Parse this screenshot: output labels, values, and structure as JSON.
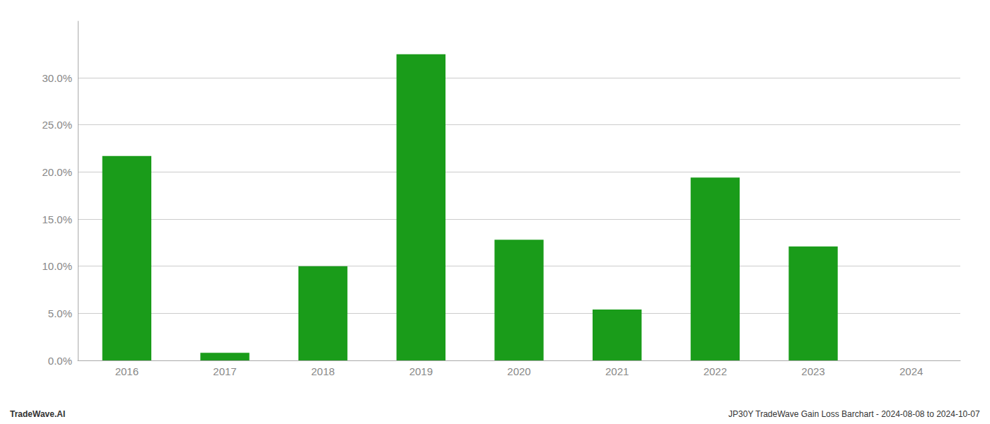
{
  "chart_data": {
    "type": "bar",
    "categories": [
      "2016",
      "2017",
      "2018",
      "2019",
      "2020",
      "2021",
      "2022",
      "2023",
      "2024"
    ],
    "values": [
      0.217,
      0.008,
      0.1,
      0.325,
      0.128,
      0.054,
      0.194,
      0.121,
      0.0
    ],
    "color": "#1a9c1a",
    "ylim": [
      0.0,
      0.36
    ],
    "yticks": [
      {
        "value": 0.0,
        "label": "0.0%"
      },
      {
        "value": 0.05,
        "label": "5.0%"
      },
      {
        "value": 0.1,
        "label": "10.0%"
      },
      {
        "value": 0.15,
        "label": "15.0%"
      },
      {
        "value": 0.2,
        "label": "20.0%"
      },
      {
        "value": 0.25,
        "label": "25.0%"
      },
      {
        "value": 0.3,
        "label": "30.0%"
      }
    ],
    "grid": true,
    "annotations": [
      "TradeWave.AI",
      "JP30Y TradeWave Gain Loss Barchart - 2024-08-08 to 2024-10-07"
    ]
  }
}
